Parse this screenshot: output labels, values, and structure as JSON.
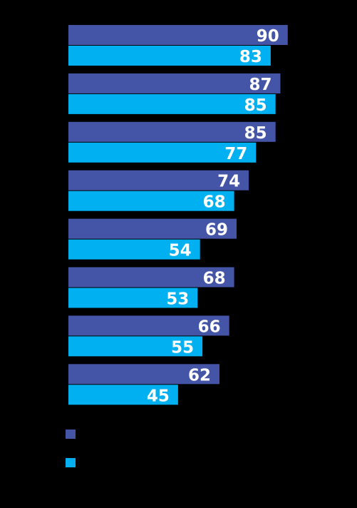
{
  "chart_data": {
    "type": "bar",
    "orientation": "horizontal",
    "title": "",
    "xlabel": "",
    "ylabel": "",
    "xlim": [
      0,
      100
    ],
    "grid": false,
    "legend_position": "bottom-left",
    "series": [
      {
        "color": "#4454a6",
        "values": [
          90,
          87,
          85,
          74,
          69,
          68,
          66,
          62
        ]
      },
      {
        "color": "#00b0f0",
        "values": [
          83,
          85,
          77,
          68,
          54,
          53,
          55,
          45
        ]
      }
    ]
  },
  "colors": {
    "background": "#000000",
    "label_text": "#ffffff"
  }
}
